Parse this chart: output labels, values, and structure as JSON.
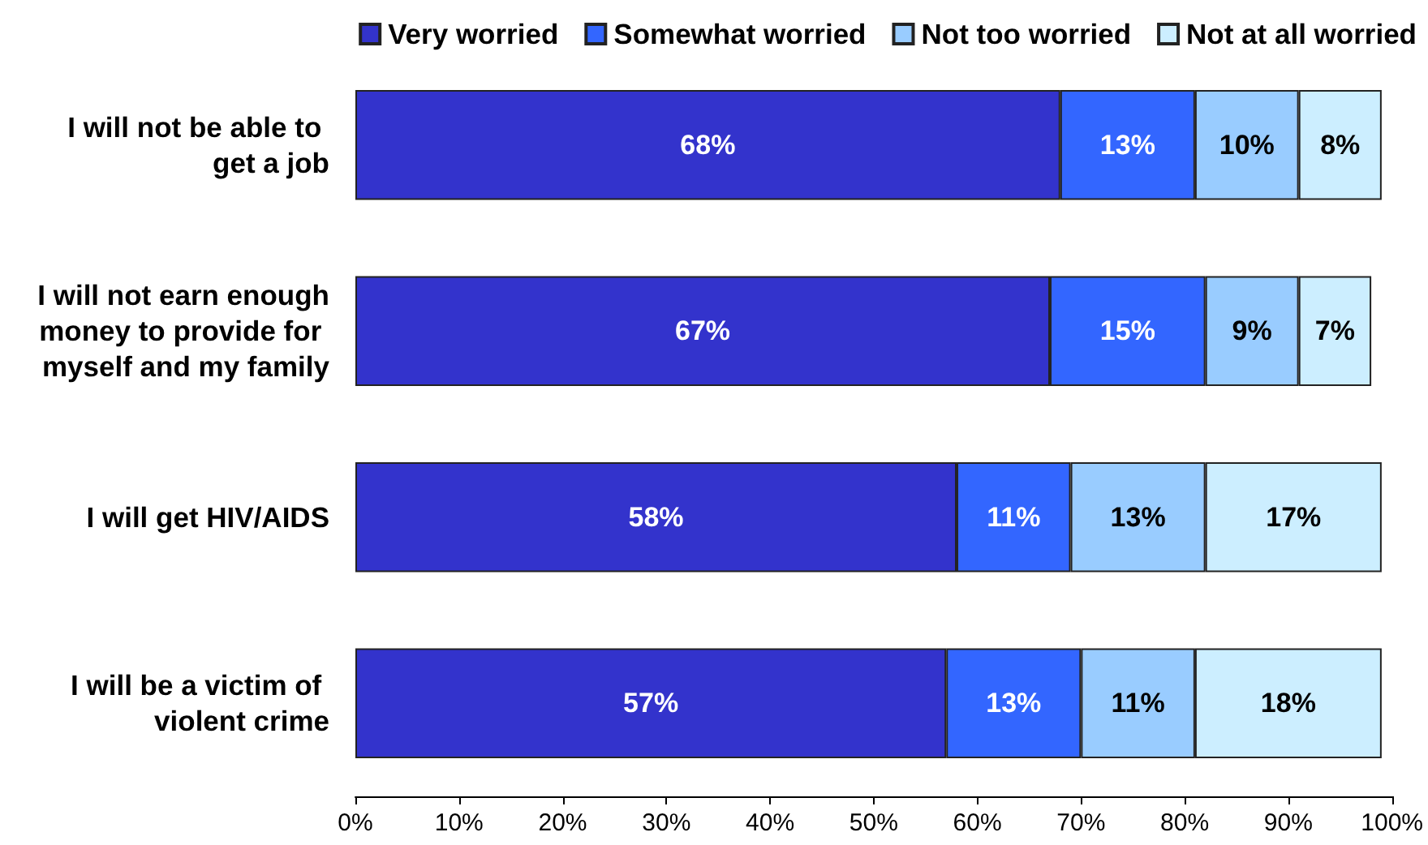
{
  "chart_data": {
    "type": "bar",
    "orientation": "horizontal",
    "stacked": true,
    "categories": [
      "I will not be able to get a job",
      "I will not earn enough money to provide for myself and my family",
      "I will get HIV/AIDS",
      "I will be a victim of violent crime"
    ],
    "series": [
      {
        "name": "Very worried",
        "color": "#3333cc",
        "values": [
          68,
          67,
          58,
          57
        ],
        "value_labels": [
          "68%",
          "67%",
          "58%",
          "57%"
        ]
      },
      {
        "name": "Somewhat worried",
        "color": "#3366ff",
        "values": [
          13,
          15,
          11,
          13
        ],
        "value_labels": [
          "13%",
          "15%",
          "11%",
          "13%"
        ]
      },
      {
        "name": "Not too worried",
        "color": "#99ccff",
        "values": [
          10,
          9,
          13,
          11
        ],
        "value_labels": [
          "10%",
          "9%",
          "13%",
          "11%"
        ]
      },
      {
        "name": "Not at all worried",
        "color": "#cceeff",
        "values": [
          8,
          7,
          17,
          18
        ],
        "value_labels": [
          "8%",
          "7%",
          "17%",
          "18%"
        ]
      }
    ],
    "xlim": [
      0,
      100
    ],
    "xticks": [
      {
        "value": 0,
        "label": "0%"
      },
      {
        "value": 10,
        "label": "10%"
      },
      {
        "value": 20,
        "label": "20%"
      },
      {
        "value": 30,
        "label": "30%"
      },
      {
        "value": 40,
        "label": "40%"
      },
      {
        "value": 50,
        "label": "50%"
      },
      {
        "value": 60,
        "label": "60%"
      },
      {
        "value": 70,
        "label": "70%"
      },
      {
        "value": 80,
        "label": "80%"
      },
      {
        "value": 90,
        "label": "90%"
      },
      {
        "value": 100,
        "label": "100%"
      }
    ],
    "grid": false,
    "legend": "top right"
  }
}
